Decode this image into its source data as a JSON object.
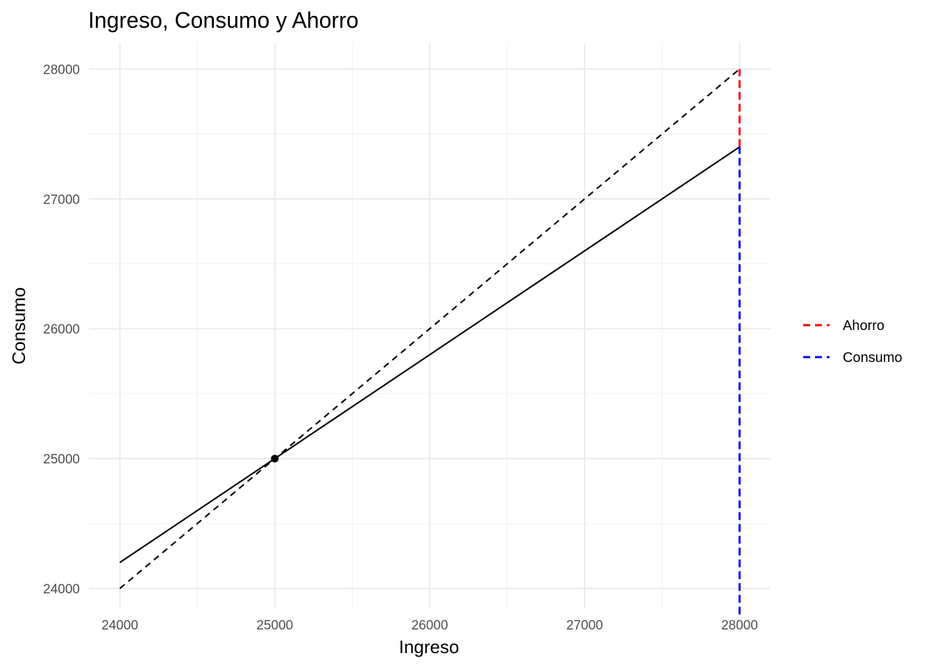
{
  "chart_data": {
    "type": "line",
    "title": "Ingreso, Consumo y Ahorro",
    "xlabel": "Ingreso",
    "ylabel": "Consumo",
    "xlim": [
      23800,
      28200
    ],
    "ylim": [
      23850,
      28200
    ],
    "x_ticks": [
      24000,
      25000,
      26000,
      27000,
      28000
    ],
    "y_ticks": [
      24000,
      25000,
      26000,
      27000,
      28000
    ],
    "x_minor_ticks": [
      24500,
      25500,
      26500,
      27500
    ],
    "y_minor_ticks": [
      24500,
      25500,
      26500,
      27500
    ],
    "grid": true,
    "legend_position": "right",
    "series": [
      {
        "key": "consumption_function",
        "x": [
          24000,
          28000
        ],
        "y": [
          24200,
          27400
        ],
        "color": "#000000",
        "dash": "solid"
      },
      {
        "key": "line_45_degrees",
        "x": [
          24000,
          28000
        ],
        "y": [
          24000,
          28000
        ],
        "color": "#000000",
        "dash": "dashed"
      },
      {
        "key": "consumo_segment",
        "name": "Consumo",
        "x": [
          28000,
          28000
        ],
        "y": [
          23800,
          27400
        ],
        "color": "#0000ff",
        "dash": "dashed"
      },
      {
        "key": "ahorro_segment",
        "name": "Ahorro",
        "x": [
          28000,
          28000
        ],
        "y": [
          27400,
          28000
        ],
        "color": "#ff0000",
        "dash": "dashed"
      }
    ],
    "points": [
      {
        "x": 25000,
        "y": 25000,
        "color": "#000000"
      }
    ],
    "legend": [
      {
        "label": "Ahorro",
        "color": "#ff0000"
      },
      {
        "label": "Consumo",
        "color": "#0000ff"
      }
    ]
  }
}
